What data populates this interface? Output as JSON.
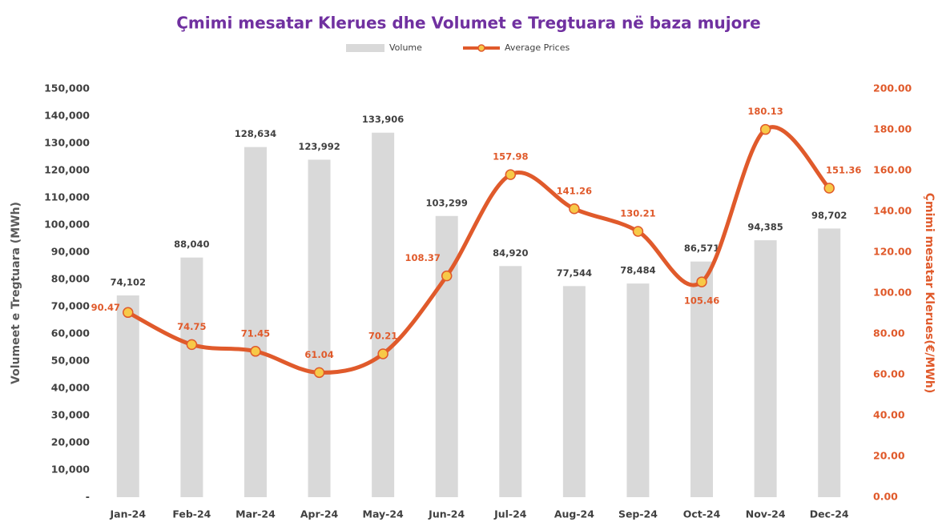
{
  "chart_data": {
    "type": "bar",
    "title": "Çmimi mesatar Klerues dhe Volumet e Tregtuara në baza mujore",
    "y_label": "Volumeet e Tregtuara (MWh)",
    "y2_label": "Çmimi mesatar Klerues(€/MWh)",
    "categories": [
      "Jan-24",
      "Feb-24",
      "Mar-24",
      "Apr-24",
      "May-24",
      "Jun-24",
      "Jul-24",
      "Aug-24",
      "Sep-24",
      "Oct-24",
      "Nov-24",
      "Dec-24"
    ],
    "series": [
      {
        "name": "Volume",
        "type": "bar",
        "color": "#d9d9d9",
        "values": [
          74102,
          88040,
          128634,
          123992,
          133906,
          103299,
          84920,
          77544,
          78484,
          86571,
          94385,
          98702
        ],
        "value_labels": [
          "74,102",
          "88,040",
          "128,634",
          "123,992",
          "133,906",
          "103,299",
          "84,920",
          "77,544",
          "78,484",
          "86,571",
          "94,385",
          "98,702"
        ]
      },
      {
        "name": "Average Prices",
        "type": "line",
        "axis": "y2",
        "color": "#e05a2b",
        "marker_color": "#f7c948",
        "values": [
          90.47,
          74.75,
          71.45,
          61.04,
          70.21,
          108.37,
          157.98,
          141.26,
          130.21,
          105.46,
          180.13,
          151.36
        ]
      }
    ],
    "ylim": [
      0,
      150000
    ],
    "yticks": [
      {
        "value": 0,
        "label": "-"
      },
      {
        "value": 10000,
        "label": "10,000"
      },
      {
        "value": 20000,
        "label": "20,000"
      },
      {
        "value": 30000,
        "label": "30,000"
      },
      {
        "value": 40000,
        "label": "40,000"
      },
      {
        "value": 50000,
        "label": "50,000"
      },
      {
        "value": 60000,
        "label": "60,000"
      },
      {
        "value": 70000,
        "label": "70,000"
      },
      {
        "value": 80000,
        "label": "80,000"
      },
      {
        "value": 90000,
        "label": "90,000"
      },
      {
        "value": 100000,
        "label": "100,000"
      },
      {
        "value": 110000,
        "label": "110,000"
      },
      {
        "value": 120000,
        "label": "120,000"
      },
      {
        "value": 130000,
        "label": "130,000"
      },
      {
        "value": 140000,
        "label": "140,000"
      },
      {
        "value": 150000,
        "label": "150,000"
      }
    ],
    "y2lim": [
      0,
      200
    ],
    "y2ticks": [
      {
        "value": 0,
        "label": "0.00"
      },
      {
        "value": 20,
        "label": "20.00"
      },
      {
        "value": 40,
        "label": "40.00"
      },
      {
        "value": 60,
        "label": "60.00"
      },
      {
        "value": 80,
        "label": "80.00"
      },
      {
        "value": 100,
        "label": "100.00"
      },
      {
        "value": 120,
        "label": "120.00"
      },
      {
        "value": 140,
        "label": "140.00"
      },
      {
        "value": 160,
        "label": "160.00"
      },
      {
        "value": 180,
        "label": "180.00"
      },
      {
        "value": 200,
        "label": "200.00"
      }
    ],
    "grid": false,
    "legend": "top"
  }
}
